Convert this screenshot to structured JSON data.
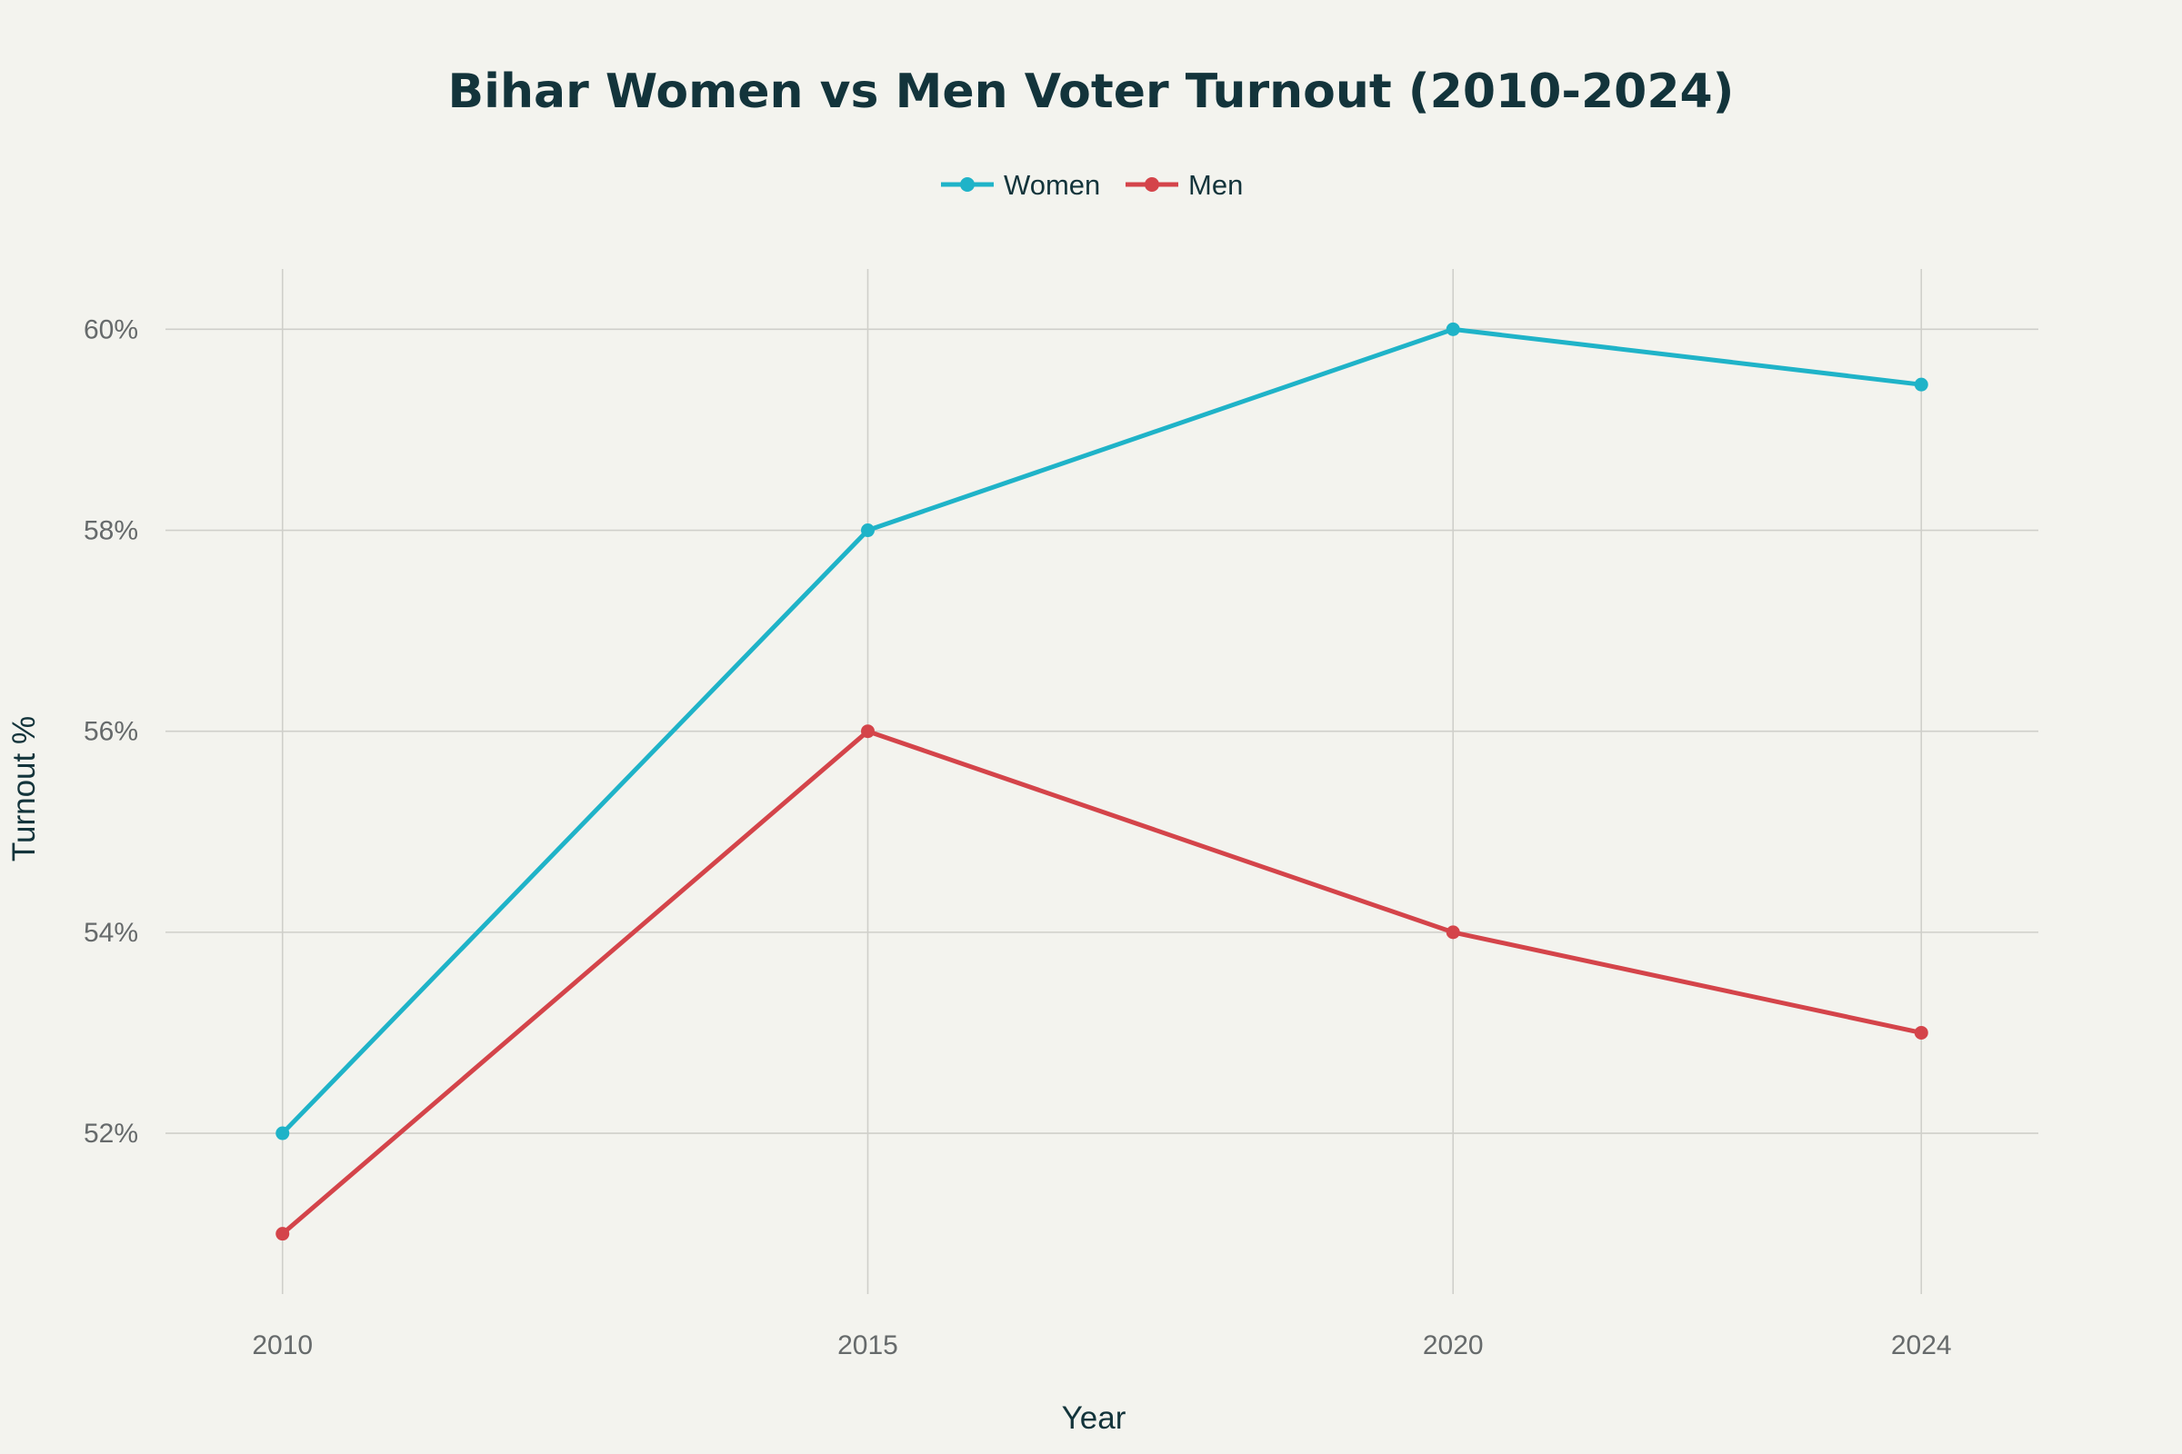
{
  "chart_data": {
    "type": "line",
    "title": "Bihar Women vs Men Voter Turnout (2010-2024)",
    "xlabel": "Year",
    "ylabel": "Turnout %",
    "x": [
      2010,
      2015,
      2020,
      2024
    ],
    "x_tick_labels": [
      "2010",
      "2015",
      "2020",
      "2024"
    ],
    "y_ticks": [
      52,
      54,
      56,
      58,
      60
    ],
    "y_tick_labels": [
      "52%",
      "54%",
      "56%",
      "58%",
      "60%"
    ],
    "xlim": [
      2009,
      2025
    ],
    "ylim": [
      50.4,
      60.6
    ],
    "grid": true,
    "legend_position": "top-center",
    "series": [
      {
        "name": "Women",
        "color": "#1fb3c8",
        "values": [
          52,
          58,
          60,
          59.45
        ]
      },
      {
        "name": "Men",
        "color": "#d4444a",
        "values": [
          51,
          56,
          54,
          53
        ]
      }
    ]
  }
}
